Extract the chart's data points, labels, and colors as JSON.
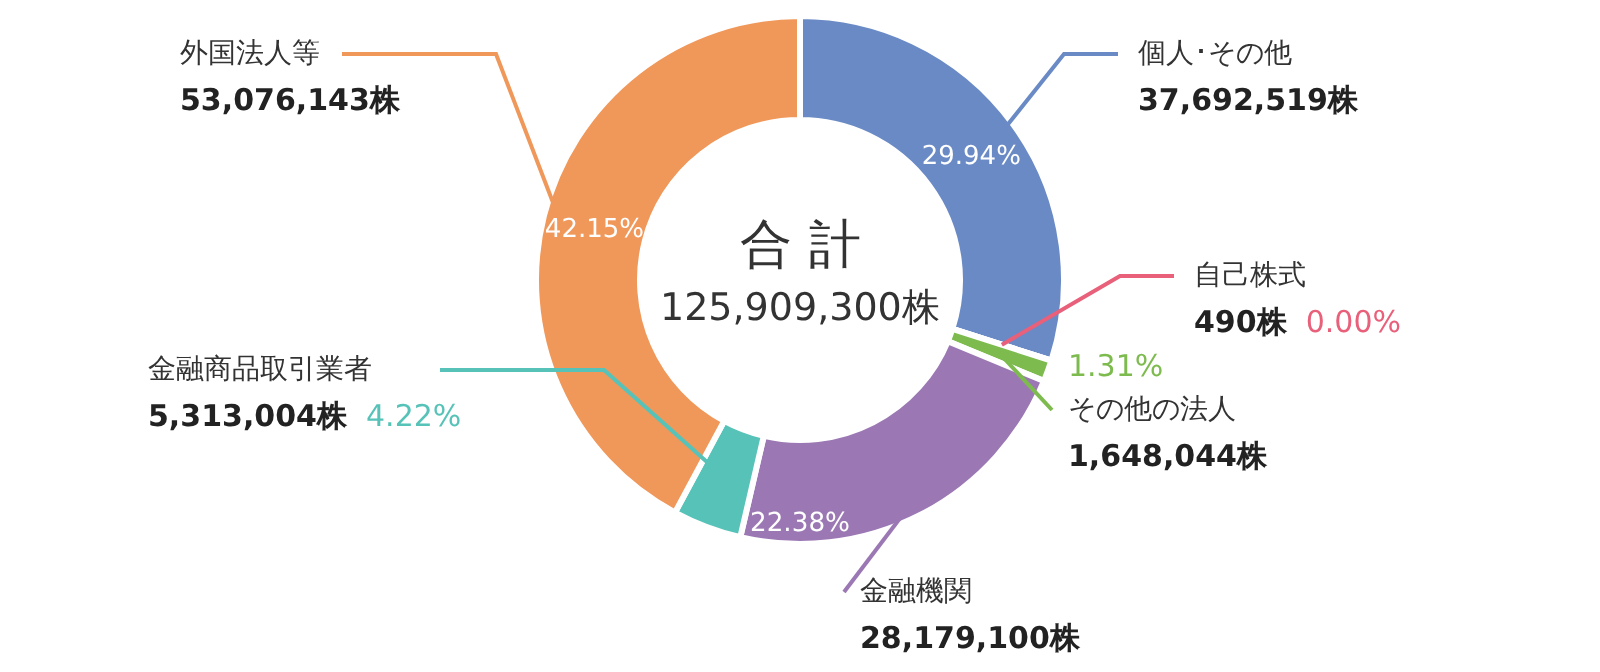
{
  "chart_data": {
    "type": "donut",
    "categories": [
      "個人･その他",
      "自己株式",
      "その他の法人",
      "金融機関",
      "金融商品取引業者",
      "外国法人等"
    ],
    "values": [
      29.94,
      0.0,
      1.31,
      22.38,
      4.22,
      42.15
    ],
    "colors": [
      "#6a8ac6",
      "#e8607a",
      "#7dbb4f",
      "#9b78b4",
      "#57c3b8",
      "#f0975a"
    ],
    "value_labels": [
      "29.94%",
      "0.00%",
      "1.31%",
      "22.38%",
      "4.22%",
      "42.15%"
    ],
    "annotations": [
      "合 計",
      "125,909,300株",
      "37,692,519株",
      "490株",
      "1,648,044株",
      "28,179,100株",
      "5,313,004株",
      "53,076,143株"
    ]
  }
}
